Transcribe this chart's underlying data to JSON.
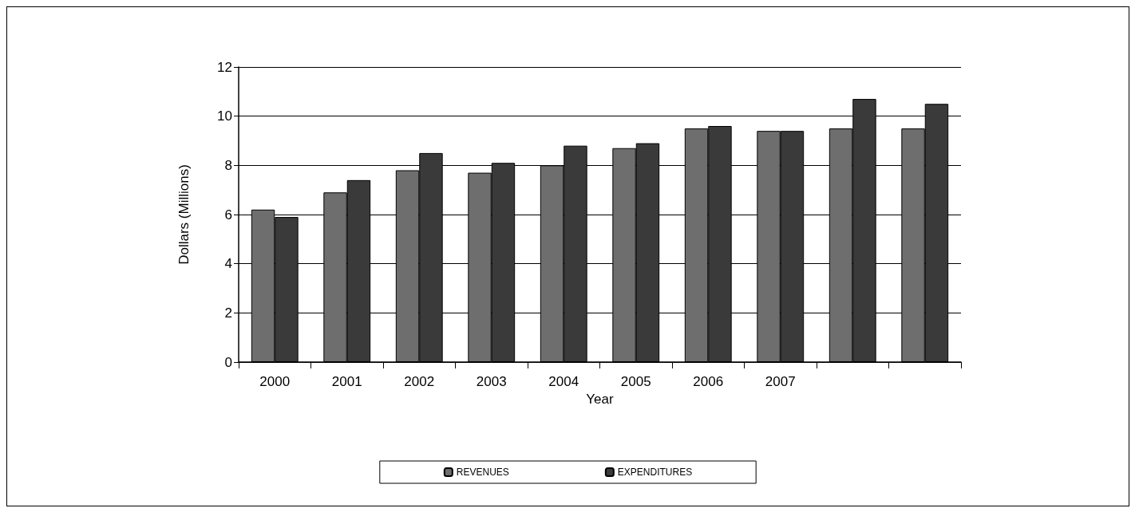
{
  "chart_data": {
    "type": "bar",
    "xlabel": "Year",
    "ylabel": "Dollars (Millions)",
    "categories": [
      "2000",
      "2001",
      "2002",
      "2003",
      "2004",
      "2005",
      "2006",
      "2007",
      null,
      null
    ],
    "series": [
      {
        "name": "REVENUES",
        "color": "#6e6e6e",
        "values": [
          6.2,
          6.9,
          7.8,
          7.7,
          8.0,
          8.7,
          9.5,
          9.4,
          9.5,
          9.5
        ]
      },
      {
        "name": "EXPENDITURES",
        "color": "#3a3a3a",
        "values": [
          5.9,
          7.4,
          8.5,
          8.1,
          8.8,
          8.9,
          9.6,
          9.4,
          10.7,
          10.5
        ]
      }
    ],
    "ylim": [
      0,
      12
    ],
    "yticks": [
      0,
      2,
      4,
      6,
      8,
      10,
      12
    ],
    "grid": "y",
    "legend": "bottom"
  }
}
